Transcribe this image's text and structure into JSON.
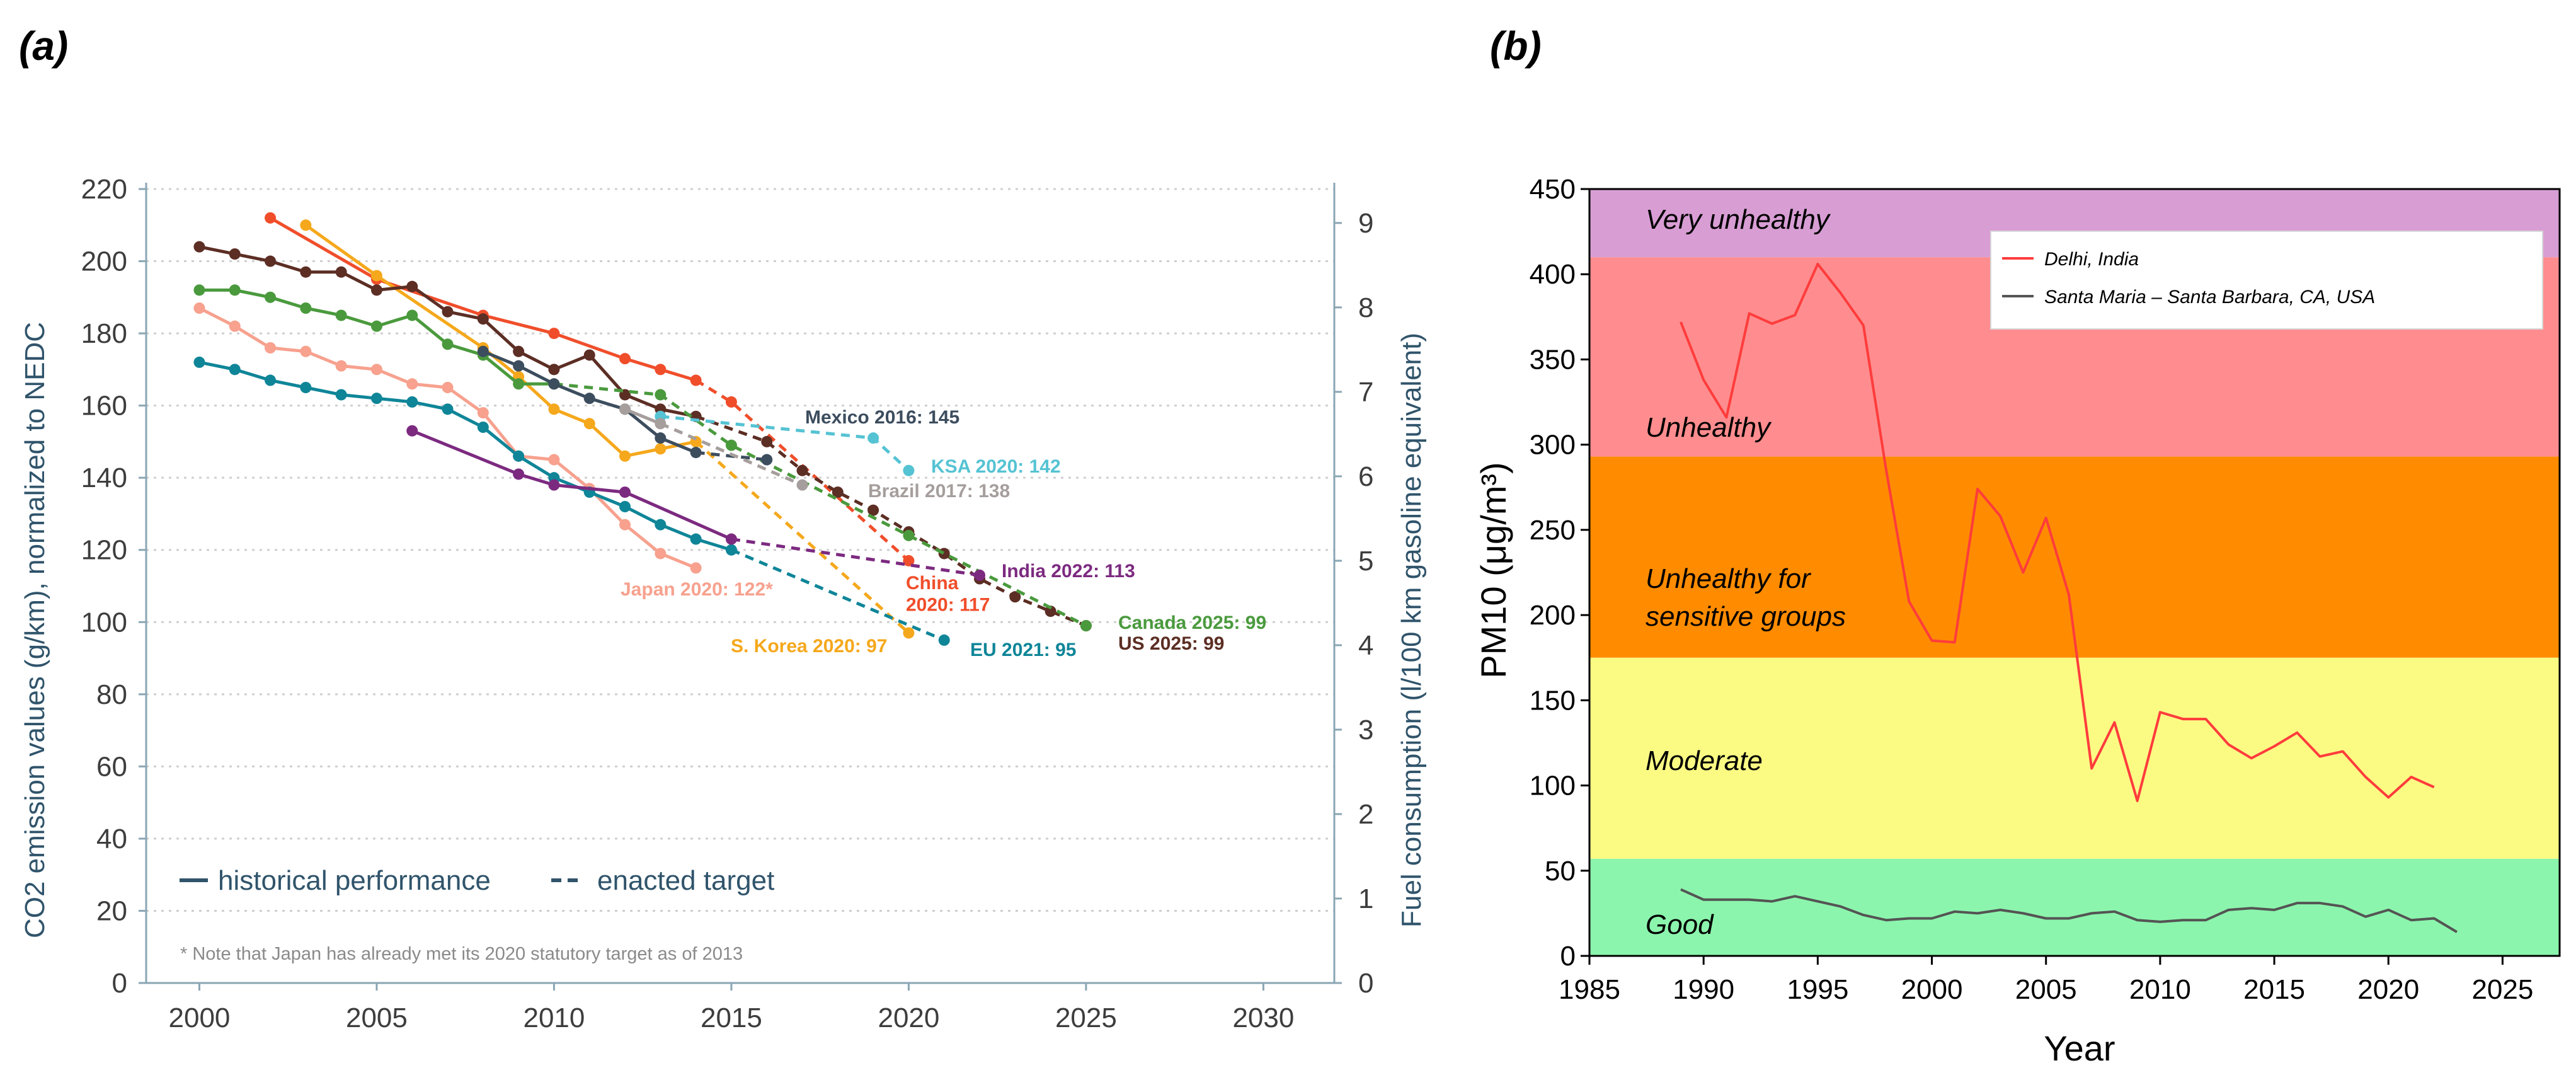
{
  "panel_a_label": "(a)",
  "panel_b_label": "(b)",
  "chart_data": [
    {
      "type": "line",
      "panel": "(a)",
      "ylabel": "CO2 emission values (g/km), normalized to NEDC",
      "y2label": "Fuel consumption (l/100 km gasoline equivalent)",
      "xlim": [
        1998.5,
        2032
      ],
      "ylim": [
        0,
        220
      ],
      "xticks": [
        2000,
        2005,
        2010,
        2015,
        2020,
        2025,
        2030
      ],
      "yticks": [
        0,
        20,
        40,
        60,
        80,
        100,
        120,
        140,
        160,
        180,
        200,
        220
      ],
      "y2ticks": [
        0,
        1,
        2,
        3,
        4,
        5,
        6,
        7,
        8,
        9
      ],
      "legend": {
        "historical": "historical performance",
        "target": "enacted target"
      },
      "note": "* Note that Japan has already met its 2020 statutory target as of 2013",
      "series": [
        {
          "name": "China",
          "label": "China\n2020: 117",
          "color": "#f04e2b",
          "historical": [
            [
              2002,
              212
            ],
            [
              2005,
              195
            ],
            [
              2008,
              185
            ],
            [
              2010,
              180
            ],
            [
              2012,
              173
            ],
            [
              2013,
              170
            ],
            [
              2014,
              167
            ]
          ],
          "target": [
            [
              2014,
              167
            ],
            [
              2015,
              161
            ],
            [
              2020,
              117
            ]
          ]
        },
        {
          "name": "S. Korea",
          "label": "S. Korea 2020: 97",
          "color": "#f5a81c",
          "historical": [
            [
              2003,
              210
            ],
            [
              2005,
              196
            ],
            [
              2008,
              176
            ],
            [
              2009,
              168
            ],
            [
              2010,
              159
            ],
            [
              2011,
              155
            ],
            [
              2012,
              146
            ],
            [
              2013,
              148
            ],
            [
              2014,
              150
            ]
          ],
          "target": [
            [
              2014,
              150
            ],
            [
              2020,
              97
            ]
          ]
        },
        {
          "name": "US",
          "label": "US 2025: 99",
          "color": "#5c2e24",
          "historical": [
            [
              2000,
              204
            ],
            [
              2001,
              202
            ],
            [
              2002,
              200
            ],
            [
              2003,
              197
            ],
            [
              2004,
              197
            ],
            [
              2005,
              192
            ],
            [
              2006,
              193
            ],
            [
              2007,
              186
            ],
            [
              2008,
              184
            ],
            [
              2009,
              175
            ],
            [
              2010,
              170
            ],
            [
              2011,
              174
            ],
            [
              2012,
              163
            ],
            [
              2013,
              159
            ],
            [
              2014,
              157
            ]
          ],
          "target": [
            [
              2014,
              157
            ],
            [
              2016,
              150
            ],
            [
              2017,
              142
            ],
            [
              2018,
              136
            ],
            [
              2019,
              131
            ],
            [
              2020,
              125
            ],
            [
              2021,
              119
            ],
            [
              2022,
              112
            ],
            [
              2023,
              107
            ],
            [
              2024,
              103
            ],
            [
              2025,
              99
            ]
          ]
        },
        {
          "name": "Canada",
          "label": "Canada 2025: 99",
          "color": "#4a9a3d",
          "historical": [
            [
              2000,
              192
            ],
            [
              2001,
              192
            ],
            [
              2002,
              190
            ],
            [
              2003,
              187
            ],
            [
              2004,
              185
            ],
            [
              2005,
              182
            ],
            [
              2006,
              185
            ],
            [
              2007,
              177
            ],
            [
              2008,
              174
            ],
            [
              2009,
              166
            ],
            [
              2010,
              166
            ]
          ],
          "target": [
            [
              2010,
              166
            ],
            [
              2013,
              163
            ],
            [
              2015,
              149
            ],
            [
              2020,
              124
            ],
            [
              2025,
              99
            ]
          ]
        },
        {
          "name": "Mexico",
          "label": "Mexico 2016: 145",
          "color": "#3c4d5e",
          "historical": [
            [
              2008,
              175
            ],
            [
              2009,
              171
            ],
            [
              2010,
              166
            ],
            [
              2011,
              162
            ],
            [
              2012,
              159
            ],
            [
              2013,
              151
            ],
            [
              2014,
              147
            ]
          ],
          "target": [
            [
              2014,
              147
            ],
            [
              2016,
              145
            ]
          ]
        },
        {
          "name": "Japan",
          "label": "Japan 2020: 122*",
          "color": "#f7a18e",
          "historical": [
            [
              2000,
              187
            ],
            [
              2001,
              182
            ],
            [
              2002,
              176
            ],
            [
              2003,
              175
            ],
            [
              2004,
              171
            ],
            [
              2005,
              170
            ],
            [
              2006,
              166
            ],
            [
              2007,
              165
            ],
            [
              2008,
              158
            ],
            [
              2009,
              146
            ],
            [
              2010,
              145
            ],
            [
              2011,
              137
            ],
            [
              2012,
              127
            ],
            [
              2013,
              119
            ],
            [
              2014,
              115
            ]
          ],
          "target": []
        },
        {
          "name": "EU",
          "label": "EU 2021: 95",
          "color": "#0f8598",
          "historical": [
            [
              2000,
              172
            ],
            [
              2001,
              170
            ],
            [
              2002,
              167
            ],
            [
              2003,
              165
            ],
            [
              2004,
              163
            ],
            [
              2005,
              162
            ],
            [
              2006,
              161
            ],
            [
              2007,
              159
            ],
            [
              2008,
              154
            ],
            [
              2009,
              146
            ],
            [
              2010,
              140
            ],
            [
              2011,
              136
            ],
            [
              2012,
              132
            ],
            [
              2013,
              127
            ],
            [
              2014,
              123
            ],
            [
              2015,
              120
            ]
          ],
          "target": [
            [
              2015,
              120
            ],
            [
              2021,
              95
            ]
          ]
        },
        {
          "name": "India",
          "label": "India 2022: 113",
          "color": "#7c2a80",
          "historical": [
            [
              2006,
              153
            ],
            [
              2009,
              141
            ],
            [
              2010,
              138
            ],
            [
              2012,
              136
            ],
            [
              2015,
              123
            ]
          ],
          "target": [
            [
              2015,
              123
            ],
            [
              2022,
              113
            ]
          ]
        },
        {
          "name": "KSA",
          "label": "KSA 2020: 142",
          "color": "#55c3d3",
          "historical": [],
          "target": [
            [
              2013,
              157
            ],
            [
              2019,
              151
            ],
            [
              2020,
              142
            ]
          ]
        },
        {
          "name": "Brazil",
          "label": "Brazil 2017: 138",
          "color": "#a59e9c",
          "historical": [
            [
              2012,
              159
            ],
            [
              2013,
              155
            ]
          ],
          "target": [
            [
              2013,
              155
            ],
            [
              2017,
              138
            ]
          ]
        }
      ]
    },
    {
      "type": "line",
      "panel": "(b)",
      "xlabel": "Year",
      "ylabel": "PM10 (μg/m³)",
      "xlim": [
        1985,
        2027.5
      ],
      "ylim": [
        0,
        450
      ],
      "xticks": [
        1985,
        1990,
        1995,
        2000,
        2005,
        2010,
        2015,
        2020,
        2025
      ],
      "yticks": [
        0,
        50,
        100,
        150,
        200,
        250,
        300,
        350,
        400,
        450
      ],
      "bands": [
        {
          "label": "Good",
          "from": 0,
          "to": 57,
          "color": "#8cf5ad"
        },
        {
          "label": "Moderate",
          "from": 57,
          "to": 175,
          "color": "#fbfb84"
        },
        {
          "label": "Unhealthy for\nsensitive groups",
          "from": 175,
          "to": 293,
          "color": "#ff8c00"
        },
        {
          "label": "Unhealthy",
          "from": 293,
          "to": 410,
          "color": "#ff8d8f"
        },
        {
          "label": "Very unhealthy",
          "from": 410,
          "to": 450,
          "color": "#d89ed4"
        }
      ],
      "series": [
        {
          "name": "Delhi, India",
          "color": "#ff3c3c",
          "x": [
            1989,
            1990,
            1991,
            1992,
            1993,
            1994,
            1995,
            1996,
            1997,
            1998,
            1999,
            2000,
            2001,
            2002,
            2003,
            2004,
            2005,
            2006,
            2007,
            2008,
            2009,
            2010,
            2011,
            2012,
            2013,
            2014,
            2015,
            2016,
            2017,
            2018,
            2019,
            2020,
            2021,
            2022
          ],
          "values": [
            372,
            338,
            316,
            377,
            371,
            376,
            406,
            389,
            370,
            285,
            208,
            185,
            184,
            274,
            258,
            225,
            257,
            212,
            110,
            137,
            91,
            143,
            139,
            139,
            124,
            116,
            123,
            131,
            117,
            120,
            105,
            93,
            105,
            99
          ]
        },
        {
          "name": "Santa Maria – Santa Barbara, CA, USA",
          "color": "#545454",
          "x": [
            1989,
            1990,
            1991,
            1992,
            1993,
            1994,
            1995,
            1996,
            1997,
            1998,
            1999,
            2000,
            2001,
            2002,
            2003,
            2004,
            2005,
            2006,
            2007,
            2008,
            2009,
            2010,
            2011,
            2012,
            2013,
            2014,
            2015,
            2016,
            2017,
            2018,
            2019,
            2020,
            2021,
            2022,
            2023
          ],
          "values": [
            39,
            33,
            33,
            33,
            32,
            35,
            32,
            29,
            24,
            21,
            22,
            22,
            26,
            25,
            27,
            25,
            22,
            22,
            25,
            26,
            21,
            20,
            21,
            21,
            27,
            28,
            27,
            31,
            31,
            29,
            23,
            27,
            21,
            22,
            14
          ]
        }
      ]
    }
  ]
}
